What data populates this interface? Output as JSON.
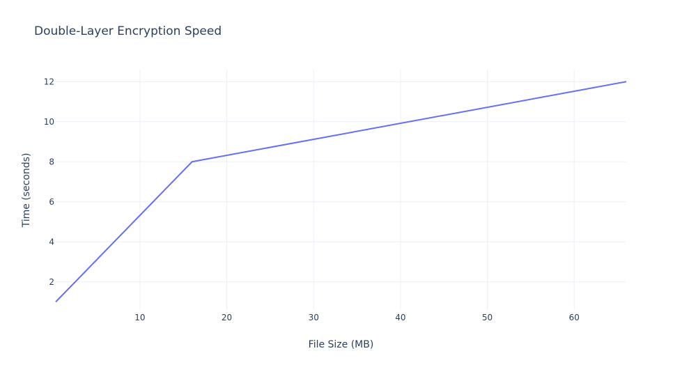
{
  "chart_data": {
    "type": "line",
    "title": "Double-Layer Encryption Speed",
    "xlabel": "File Size (MB)",
    "ylabel": "Time (seconds)",
    "xlim": [
      0.3,
      66
    ],
    "ylim": [
      0.6,
      12.6
    ],
    "x_ticks": [
      10,
      20,
      30,
      40,
      50,
      60
    ],
    "y_ticks": [
      2,
      4,
      6,
      8,
      10,
      12
    ],
    "grid": true,
    "series": [
      {
        "color": "#636efa",
        "x": [
          0.3,
          16,
          66
        ],
        "y": [
          1,
          8,
          12
        ]
      }
    ]
  }
}
